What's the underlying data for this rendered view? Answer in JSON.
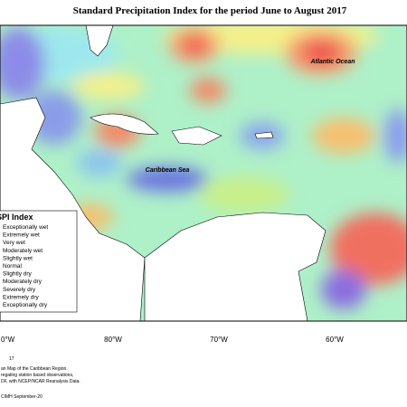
{
  "title": "Standard Precipitation Index for the period June to August 2017",
  "labels": [
    "Atlantic Ocean",
    "Caribbean Sea"
  ],
  "legend": {
    "title": "SPI Index",
    "items": [
      "Exceptionally wet",
      "Extremely wet",
      "Very wet",
      "Moderately wet",
      "Slightly wet",
      "Normal",
      "Slightly dry",
      "Moderately dry",
      "Severely dry",
      "Extremely dry",
      "Exceptionally dry"
    ]
  },
  "axis_labels": [
    "0°W",
    "80°W",
    "70°W",
    "60°W"
  ],
  "footer": [
    "17",
    "an Map of the Caribbean Region.",
    "regating station based observations,",
    "DF, with NCEP/NCAR Reanalysis Data.",
    "CIMH September-20"
  ]
}
